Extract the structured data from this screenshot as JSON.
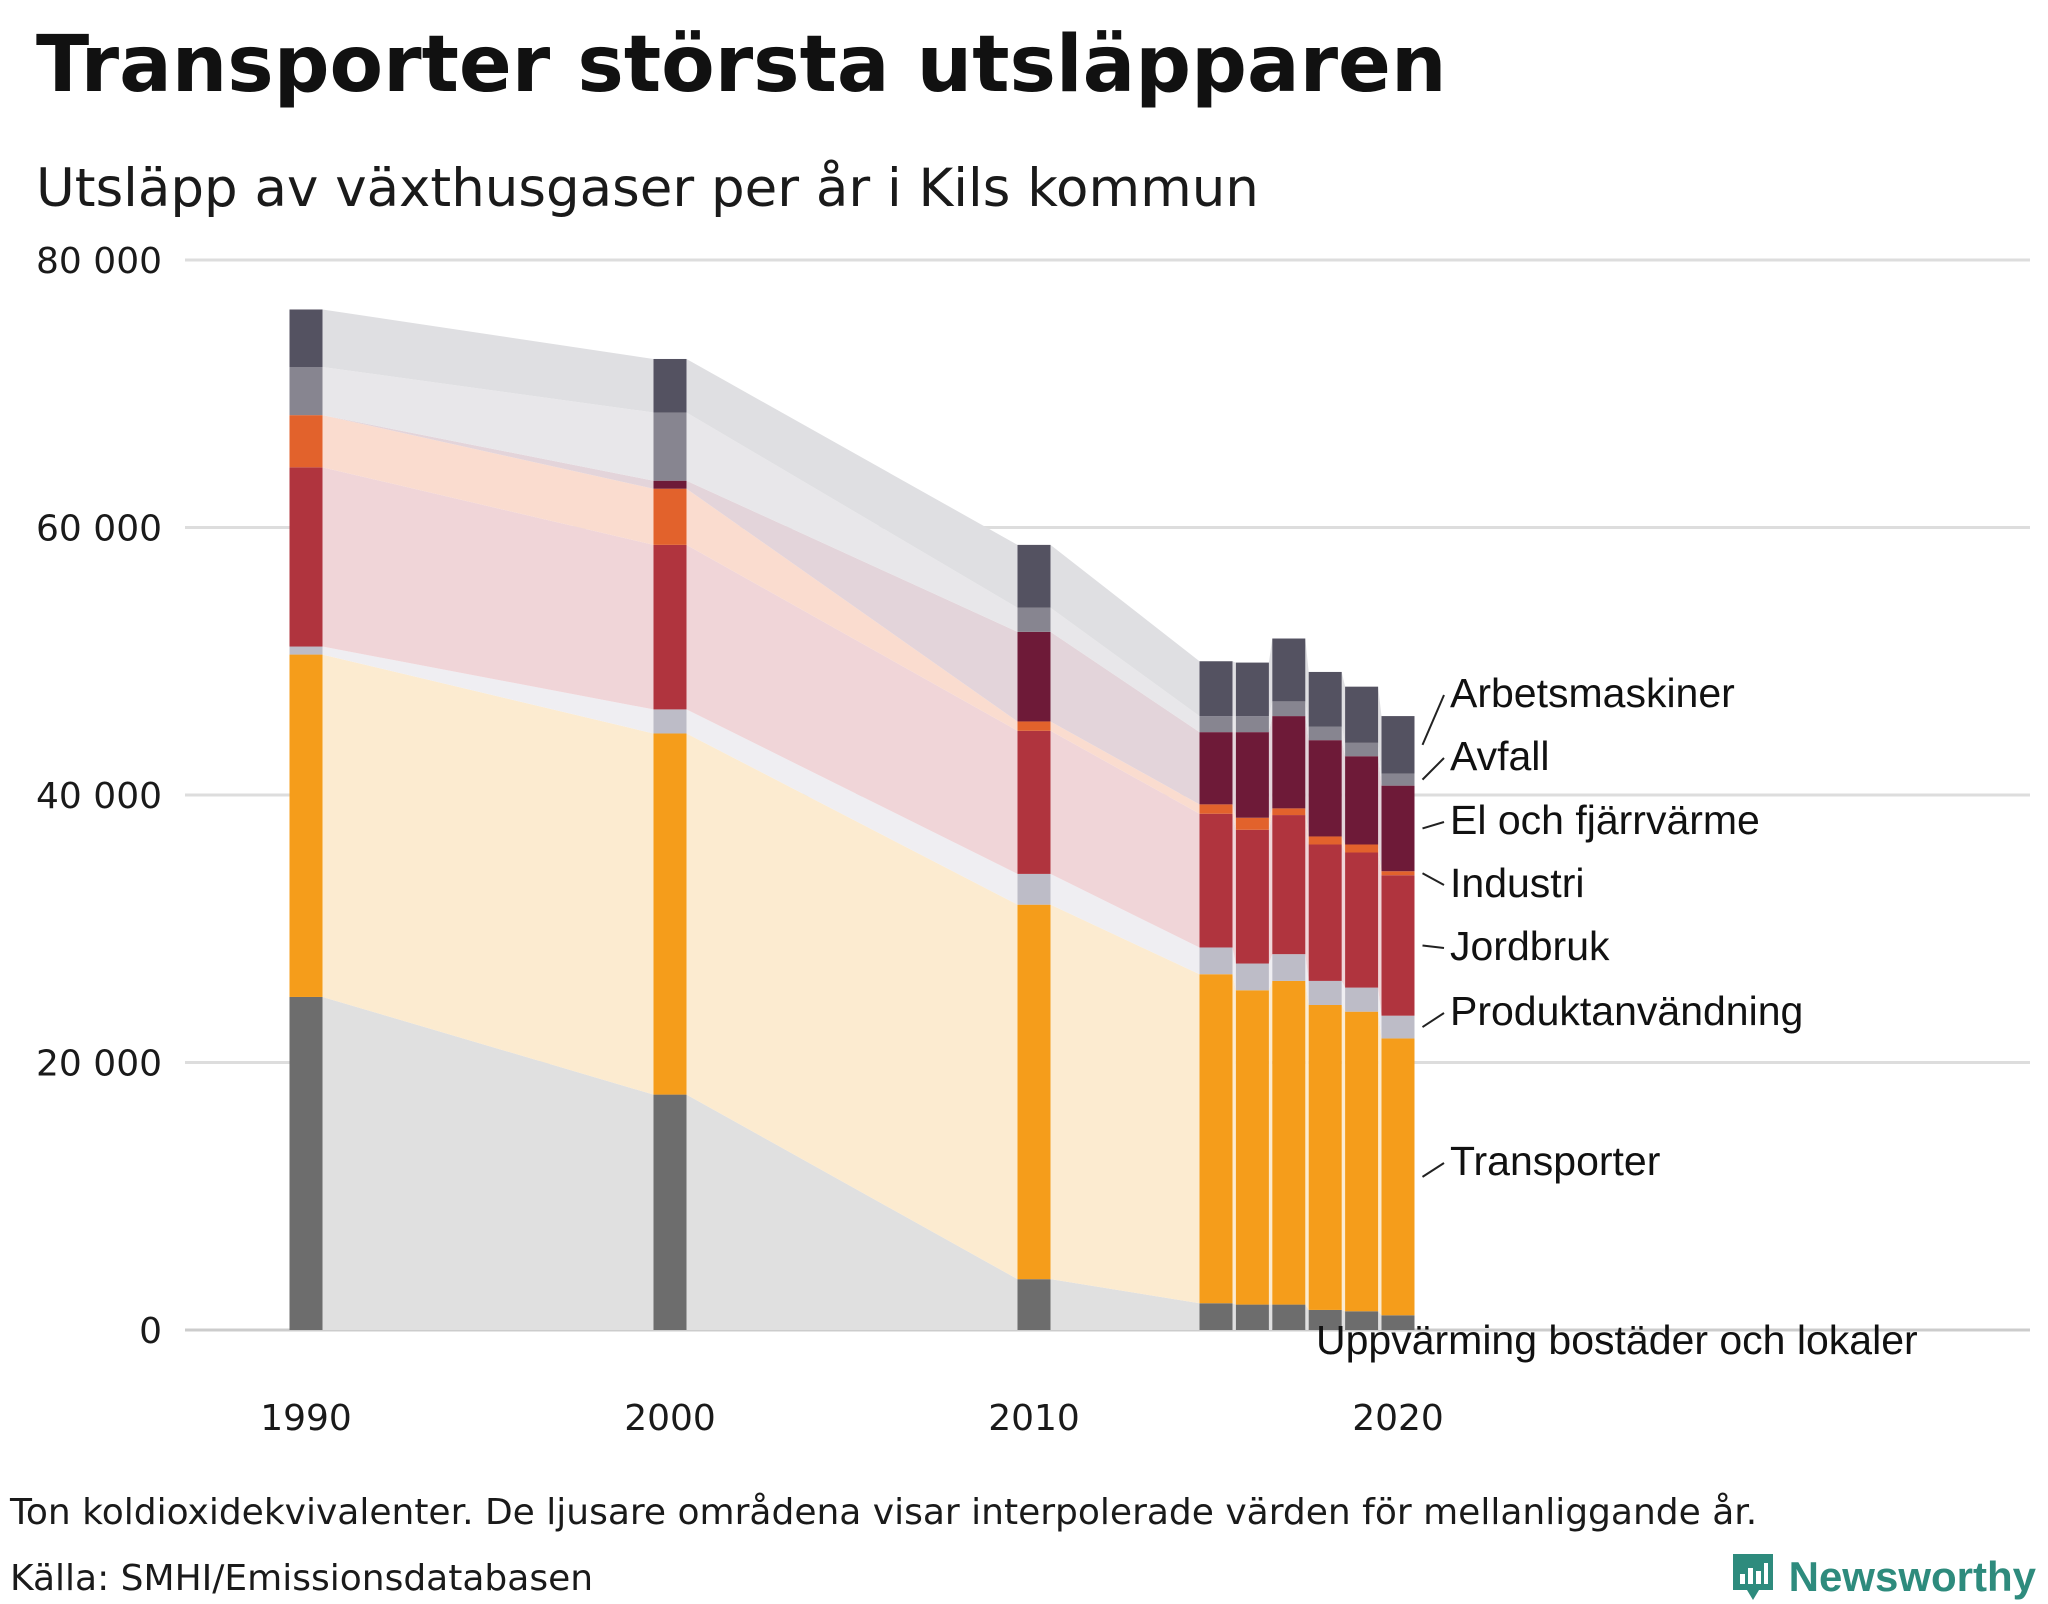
{
  "header": {
    "title": "Transporter största utsläpparen",
    "subtitle": "Utsläpp av växthusgaser per år i Kils kommun"
  },
  "footer": {
    "note": "Ton koldioxidekvivalenter. De ljusare områdena visar interpolerade värden för mellanliggande år.",
    "source": "Källa: SMHI/Emissionsdatabasen",
    "brand": "Newsworthy"
  },
  "colors": {
    "brand": "#2e8b7d",
    "gridline": "#dddddd",
    "axis": "#cccccc"
  },
  "chart_data": {
    "type": "bar",
    "stacked": true,
    "title": "",
    "xlabel": "",
    "ylabel": "",
    "x": [
      1990,
      2000,
      2010,
      2015,
      2016,
      2017,
      2018,
      2019,
      2020
    ],
    "x_ticks": [
      1990,
      2000,
      2010,
      2020
    ],
    "ylim": [
      0,
      80000
    ],
    "y_ticks": [
      0,
      20000,
      40000,
      60000,
      80000
    ],
    "y_tick_labels": [
      "0",
      "20 000",
      "40 000",
      "60 000",
      "80 000"
    ],
    "grid": true,
    "interpolated_areas": true,
    "series": [
      {
        "name": "Uppvärming bostäder och lokaler",
        "color": "#6d6d6d",
        "area_color": "#e0e0e0",
        "values": [
          24900,
          17600,
          3800,
          2000,
          1900,
          1900,
          1500,
          1400,
          1100
        ]
      },
      {
        "name": "Transporter",
        "color": "#f59d1b",
        "area_color": "#fcebd0",
        "values": [
          25600,
          27000,
          28000,
          24600,
          23500,
          24200,
          22800,
          22400,
          20700
        ]
      },
      {
        "name": "Produktanvändning",
        "color": "#bdbcc7",
        "area_color": "#efeef2",
        "values": [
          600,
          1800,
          2300,
          2000,
          2000,
          2000,
          1800,
          1800,
          1700
        ]
      },
      {
        "name": "Jordbruk",
        "color": "#b0343e",
        "area_color": "#f0d5d8",
        "values": [
          13400,
          12300,
          10700,
          10000,
          10000,
          10400,
          10200,
          10100,
          10500
        ]
      },
      {
        "name": "Industri",
        "color": "#e2622c",
        "area_color": "#fadccf",
        "values": [
          3900,
          4200,
          700,
          700,
          900,
          500,
          600,
          600,
          300
        ]
      },
      {
        "name": "El och fjärrvärme",
        "color": "#6e1a38",
        "area_color": "#e3d4da",
        "values": [
          0,
          600,
          6700,
          5400,
          6400,
          6900,
          7200,
          6600,
          6400
        ]
      },
      {
        "name": "Avfall",
        "color": "#878590",
        "area_color": "#e8e7ea",
        "values": [
          3600,
          5100,
          1800,
          1200,
          1200,
          1100,
          1000,
          1000,
          900
        ]
      },
      {
        "name": "Arbetsmaskiner",
        "color": "#545261",
        "area_color": "#dfdfe2",
        "values": [
          4300,
          4000,
          4700,
          4100,
          4000,
          4700,
          4100,
          4200,
          4300
        ]
      }
    ]
  }
}
